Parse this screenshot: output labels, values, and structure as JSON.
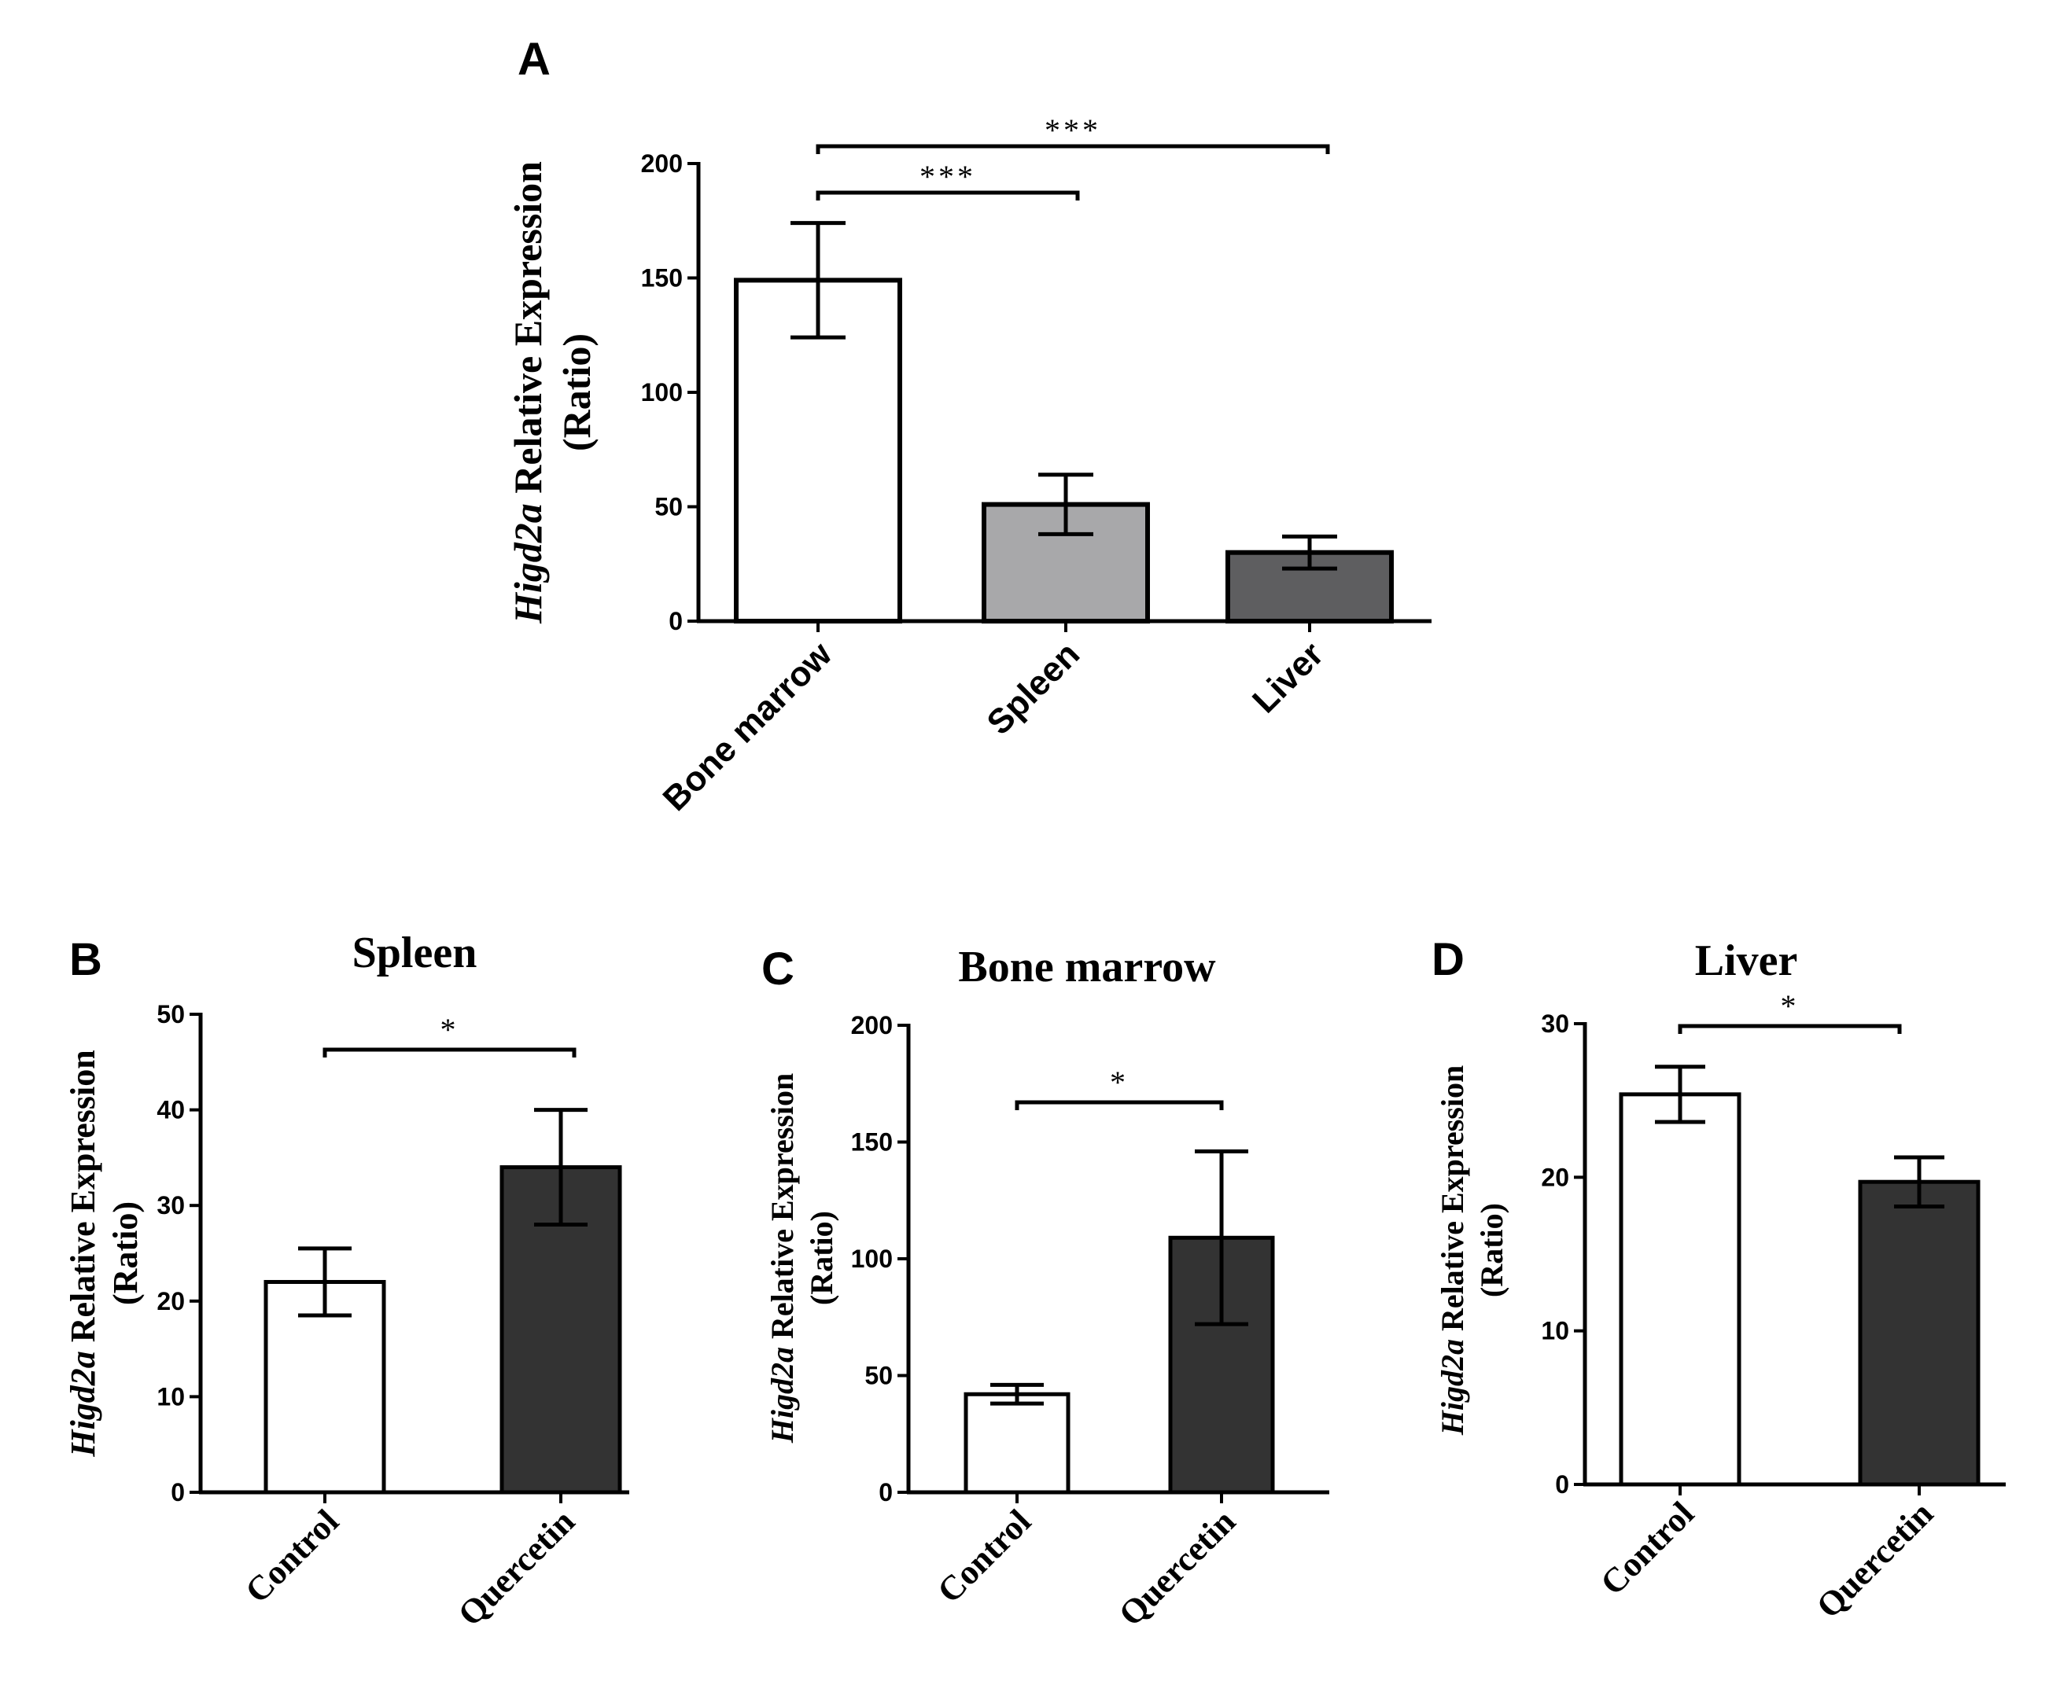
{
  "chart_data": [
    {
      "type": "bar",
      "panel": "A",
      "title": "",
      "categories": [
        "Bone marrow",
        "Spleen",
        "Liver"
      ],
      "values": [
        149,
        51,
        30
      ],
      "errors": [
        25,
        13,
        7
      ],
      "colors": [
        "#ffffff",
        "#a8a8aa",
        "#5e5e60"
      ],
      "ylabel_gene": "Higd2a",
      "ylabel_rest": " Relative Expression",
      "ylabel_line2": "(Ratio)",
      "ylim": [
        0,
        200
      ],
      "yticks": [
        0,
        50,
        100,
        150,
        200
      ],
      "significance": [
        {
          "from": 0,
          "to": 1,
          "label": "***"
        },
        {
          "from": 0,
          "to": 2,
          "label": "***"
        }
      ]
    },
    {
      "type": "bar",
      "panel": "B",
      "title": "Spleen",
      "categories": [
        "Control",
        "Quercetin"
      ],
      "values": [
        22,
        34
      ],
      "errors": [
        3.5,
        6
      ],
      "colors": [
        "#ffffff",
        "#333333"
      ],
      "ylabel_gene": "Higd2a",
      "ylabel_rest": " Relative Expression",
      "ylabel_line2": "(Ratio)",
      "ylim": [
        0,
        50
      ],
      "yticks": [
        0,
        10,
        20,
        30,
        40,
        50
      ],
      "significance": [
        {
          "from": 0,
          "to": 1,
          "label": "*"
        }
      ]
    },
    {
      "type": "bar",
      "panel": "C",
      "title": "Bone marrow",
      "categories": [
        "Control",
        "Quercetin"
      ],
      "values": [
        42,
        109
      ],
      "errors": [
        4,
        37
      ],
      "colors": [
        "#ffffff",
        "#333333"
      ],
      "ylabel_gene": "Higd2a",
      "ylabel_rest": " Relative Expression",
      "ylabel_line2": "(Ratio)",
      "ylim": [
        0,
        200
      ],
      "yticks": [
        0,
        50,
        100,
        150,
        200
      ],
      "significance": [
        {
          "from": 0,
          "to": 1,
          "label": "*"
        }
      ]
    },
    {
      "type": "bar",
      "panel": "D",
      "title": "Liver",
      "categories": [
        "Control",
        "Quercetin"
      ],
      "values": [
        25.4,
        19.7
      ],
      "errors": [
        1.8,
        1.6
      ],
      "colors": [
        "#ffffff",
        "#333333"
      ],
      "ylabel_gene": "Higd2a",
      "ylabel_rest": " Relative Expression",
      "ylabel_line2": "(Ratio)",
      "ylim": [
        0,
        30
      ],
      "yticks": [
        0,
        10,
        20,
        30
      ],
      "significance": [
        {
          "from": 0,
          "to": 1,
          "label": "*"
        }
      ]
    }
  ]
}
